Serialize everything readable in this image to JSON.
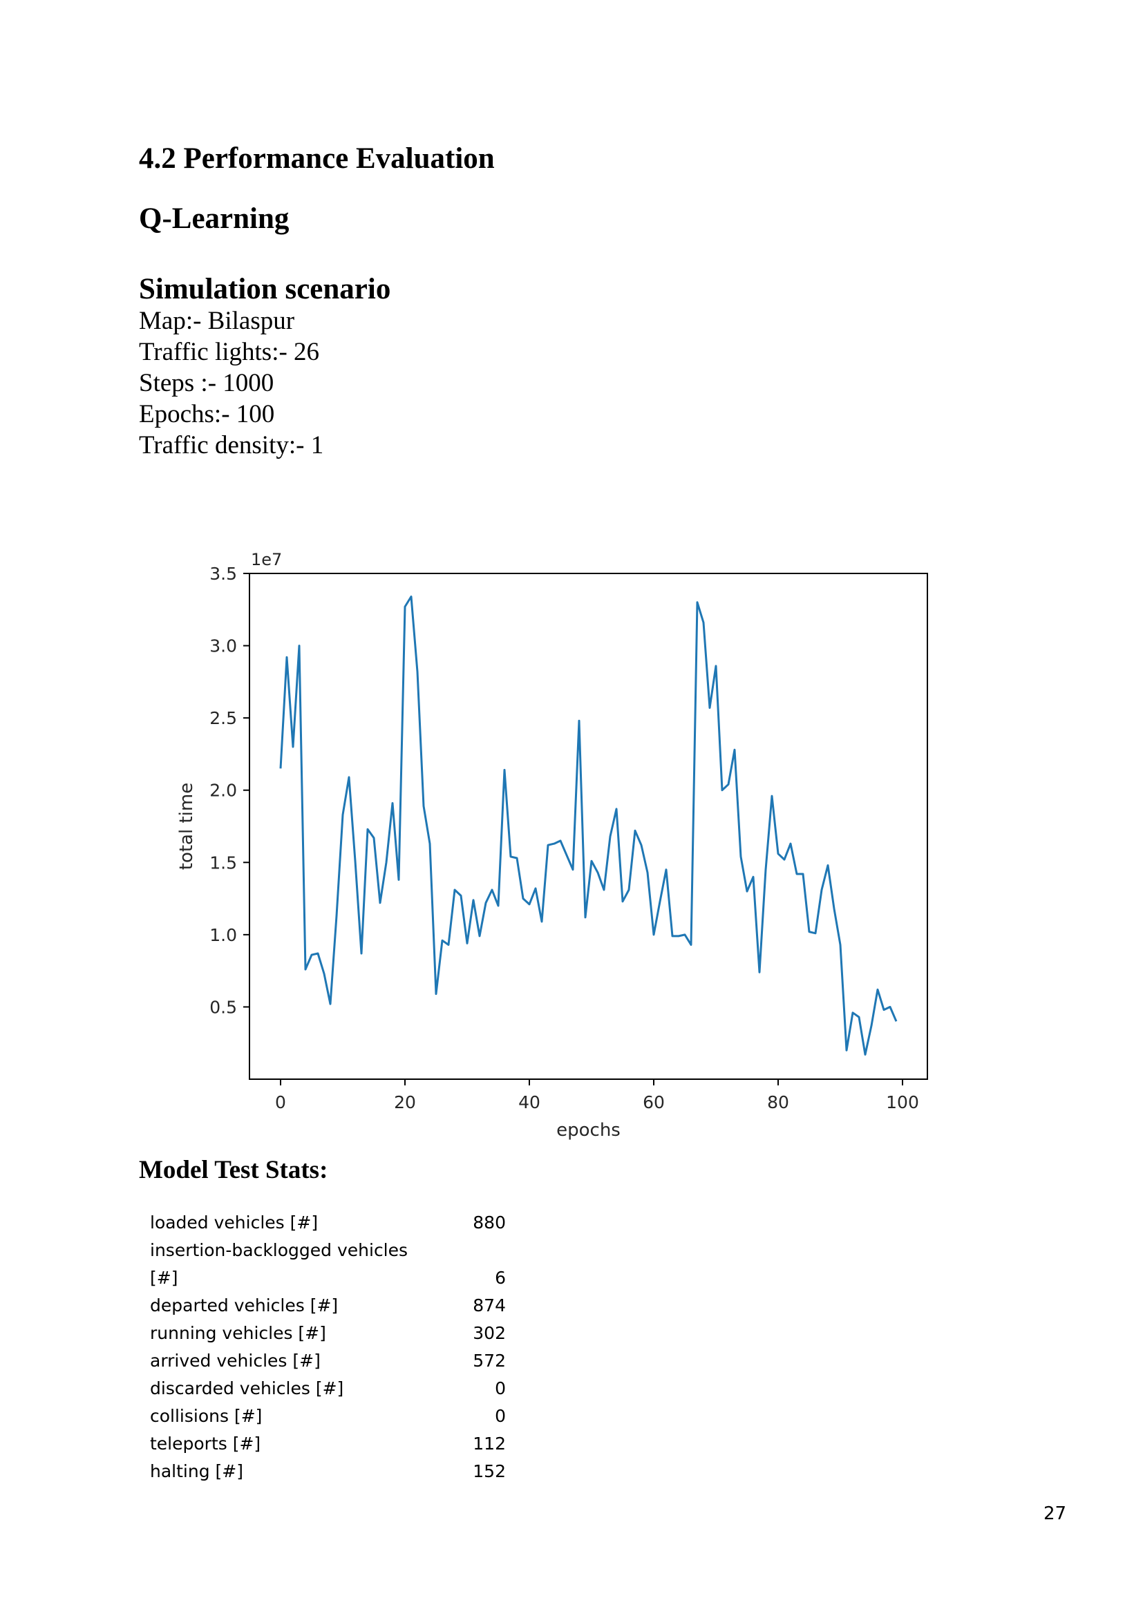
{
  "headings": {
    "section": "4.2 Performance Evaluation",
    "method": "Q-Learning",
    "scenario": "Simulation scenario",
    "stats": "Model Test Stats:"
  },
  "scenario_lines": [
    "Map:- Bilaspur",
    "Traffic lights:- 26",
    "Steps :- 1000",
    "Epochs:- 100",
    "Traffic density:- 1"
  ],
  "chart_data": {
    "type": "line",
    "title": "",
    "xlabel": "epochs",
    "ylabel": "total time",
    "y_scale_label": "1e7",
    "xlim": [
      -5,
      104
    ],
    "ylim": [
      0,
      3.5
    ],
    "xticks": [
      0,
      20,
      40,
      60,
      80,
      100
    ],
    "yticks": [
      0.5,
      1.0,
      1.5,
      2.0,
      2.5,
      3.0,
      3.5
    ],
    "grid": false,
    "line_color": "#1f77b4",
    "series": [
      {
        "x": [
          0,
          1,
          2,
          3,
          4,
          5,
          6,
          7,
          8,
          9,
          10,
          11,
          12,
          13,
          14,
          15,
          16,
          17,
          18,
          19,
          20,
          21,
          22,
          23,
          24,
          25,
          26,
          27,
          28,
          29,
          30,
          31,
          32,
          33,
          34,
          35,
          36,
          37,
          38,
          39,
          40,
          41,
          42,
          43,
          44,
          45,
          46,
          47,
          48,
          49,
          50,
          51,
          52,
          53,
          54,
          55,
          56,
          57,
          58,
          59,
          60,
          61,
          62,
          63,
          64,
          65,
          66,
          67,
          68,
          69,
          70,
          71,
          72,
          73,
          74,
          75,
          76,
          77,
          78,
          79,
          80,
          81,
          82,
          83,
          84,
          85,
          86,
          87,
          88,
          89,
          90,
          91,
          92,
          93,
          94,
          95,
          96,
          97,
          98,
          99
        ],
        "values": [
          2.15,
          2.92,
          2.3,
          3.0,
          0.76,
          0.86,
          0.87,
          0.73,
          0.52,
          1.13,
          1.83,
          2.09,
          1.51,
          0.87,
          1.73,
          1.67,
          1.22,
          1.5,
          1.91,
          1.38,
          3.27,
          3.34,
          2.82,
          1.89,
          1.63,
          0.59,
          0.96,
          0.93,
          1.31,
          1.27,
          0.94,
          1.24,
          0.99,
          1.22,
          1.31,
          1.2,
          2.14,
          1.54,
          1.53,
          1.25,
          1.21,
          1.32,
          1.09,
          1.62,
          1.63,
          1.65,
          1.55,
          1.45,
          2.48,
          1.12,
          1.51,
          1.43,
          1.31,
          1.68,
          1.87,
          1.23,
          1.31,
          1.72,
          1.62,
          1.43,
          1.0,
          1.23,
          1.45,
          0.99,
          0.99,
          1.0,
          0.93,
          3.3,
          3.16,
          2.57,
          2.86,
          2.0,
          2.04,
          2.28,
          1.54,
          1.3,
          1.4,
          0.74,
          1.45,
          1.96,
          1.56,
          1.52,
          1.63,
          1.42,
          1.42,
          1.02,
          1.01,
          1.31,
          1.48,
          1.18,
          0.93,
          0.2,
          0.46,
          0.43,
          0.17,
          0.37,
          0.62,
          0.48,
          0.5,
          0.4
        ]
      }
    ]
  },
  "stats_rows": [
    {
      "label": "loaded vehicles [#]",
      "value": "880"
    },
    {
      "label": "insertion-backlogged vehicles",
      "value": ""
    },
    {
      "label": "[#]",
      "value": "6"
    },
    {
      "label": "departed vehicles [#]",
      "value": "874"
    },
    {
      "label": "running vehicles [#]",
      "value": "302"
    },
    {
      "label": "arrived vehicles [#]",
      "value": "572"
    },
    {
      "label": "discarded vehicles [#]",
      "value": "0"
    },
    {
      "label": "collisions [#]",
      "value": "0"
    },
    {
      "label": "teleports [#]",
      "value": "112"
    },
    {
      "label": "halting [#]",
      "value": "152"
    }
  ],
  "page_number": "27"
}
